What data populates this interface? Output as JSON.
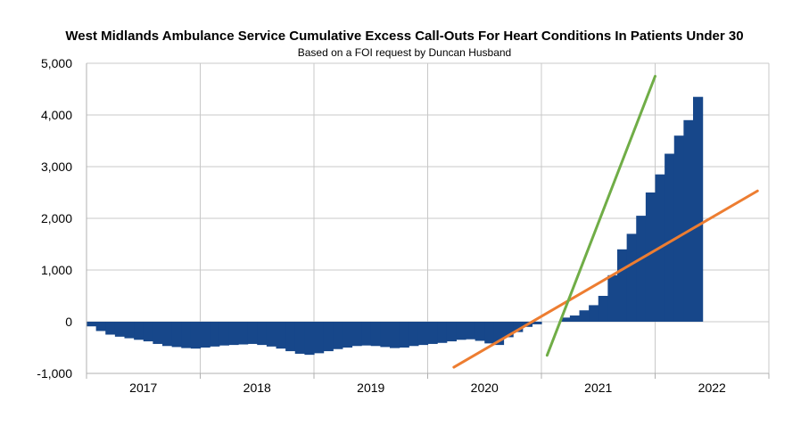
{
  "chart_data": {
    "type": "bar",
    "title": "West Midlands Ambulance Service Cumulative Excess Call-Outs For Heart Conditions In Patients Under 30",
    "subtitle": "Based on a FOI request by Duncan Husband",
    "xlabel": "",
    "ylabel": "",
    "ylim": [
      -1000,
      5000
    ],
    "yticks": [
      -1000,
      0,
      1000,
      2000,
      3000,
      4000,
      5000
    ],
    "ytick_labels": [
      "-1,000",
      "0",
      "1,000",
      "2,000",
      "3,000",
      "4,000",
      "5,000"
    ],
    "xlim": [
      2017,
      2023
    ],
    "year_labels": [
      "2017",
      "2018",
      "2019",
      "2020",
      "2021",
      "2022"
    ],
    "grid": true,
    "legend": "none",
    "bar_color": "#17478a",
    "series": [
      {
        "values": [
          -90,
          -180,
          -250,
          -290,
          -320,
          -350,
          -380,
          -430,
          -470,
          -490,
          -510,
          -520,
          -500,
          -480,
          -460,
          -450,
          -440,
          -430,
          -450,
          -480,
          -520,
          -570,
          -620,
          -640,
          -610,
          -570,
          -530,
          -500,
          -470,
          -460,
          -470,
          -490,
          -510,
          -500,
          -470,
          -450,
          -430,
          -410,
          -380,
          -350,
          -340,
          -370,
          -420,
          -450,
          -300,
          -200,
          -100,
          -50,
          0,
          0,
          80,
          120,
          220,
          320,
          500,
          900,
          1400,
          1700,
          2050,
          2500,
          2850,
          3250,
          3600,
          3900,
          4350
        ]
      }
    ],
    "trend_lines": [
      {
        "color": "#ed7d31",
        "x": [
          2020.23,
          2022.9
        ],
        "y": [
          -880,
          2530
        ]
      },
      {
        "color": "#70ad47",
        "x": [
          2021.05,
          2022.0
        ],
        "y": [
          -650,
          4750
        ]
      }
    ]
  }
}
